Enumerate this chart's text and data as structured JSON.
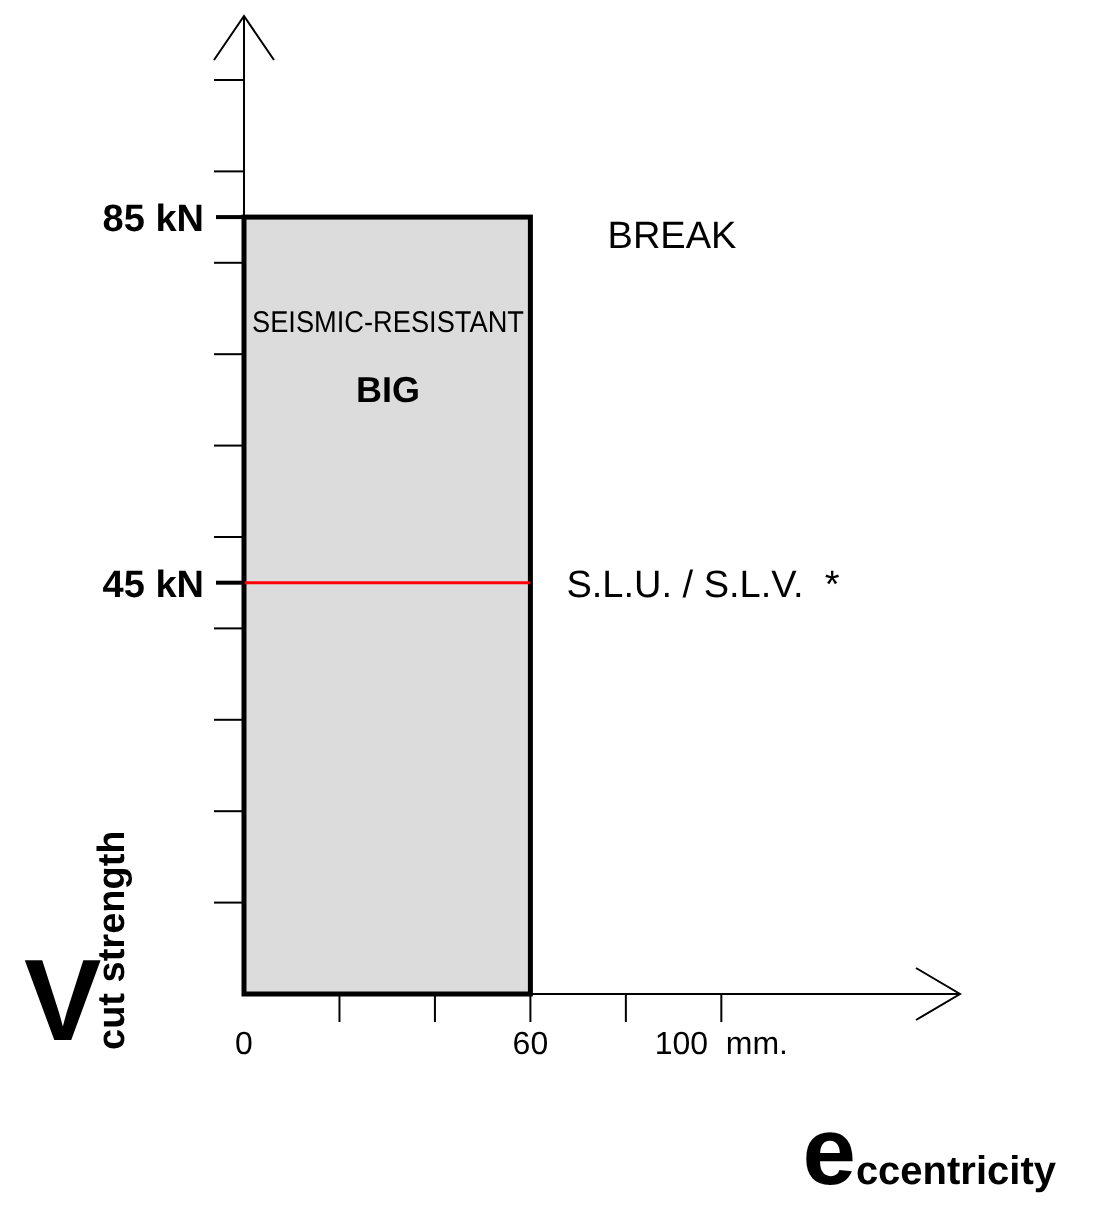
{
  "chart_data": {
    "type": "histogram",
    "xlabel": "eccentricity",
    "ylabel": "V cut strength",
    "bins": [
      0,
      60
    ],
    "values": [
      85
    ],
    "color": "#dcdcdc",
    "xlim": [
      0,
      150
    ],
    "ylim": [
      0,
      107
    ],
    "xticks": [
      0,
      {
        "value": 20,
        "label": null
      },
      {
        "value": 40,
        "label": null
      },
      60,
      {
        "value": 80,
        "label": null
      },
      {
        "value": 100,
        "label": "100  mm."
      }
    ],
    "yticks": [
      {
        "value": 10,
        "label": null
      },
      {
        "value": 20,
        "label": null
      },
      {
        "value": 30,
        "label": null
      },
      {
        "value": 40,
        "label": null
      },
      {
        "value": 45,
        "label": "45 kN"
      },
      {
        "value": 50,
        "label": null
      },
      {
        "value": 60,
        "label": null
      },
      {
        "value": 70,
        "label": null
      },
      {
        "value": 80,
        "label": null
      },
      {
        "value": 85,
        "label": "85 kN"
      },
      {
        "value": 90,
        "label": null
      },
      {
        "value": 100,
        "label": null
      }
    ],
    "ref_lines": [
      {
        "axis": "y",
        "value": 45,
        "label": "S.L.U. / S.L.V.  *",
        "color": "#ff0000"
      }
    ],
    "annotations": [
      "SEISMIC-RESISTANT",
      "BIG",
      "BREAK"
    ],
    "grid": false
  }
}
